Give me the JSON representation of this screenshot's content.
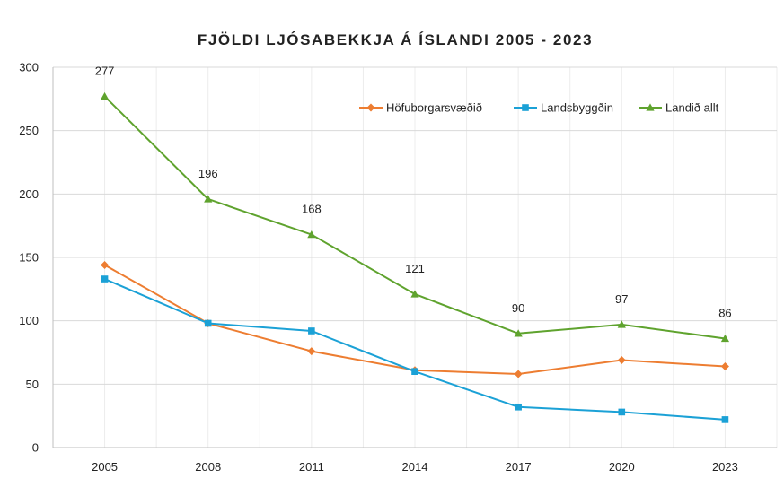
{
  "chart_data": {
    "type": "line",
    "title": "FJÖLDI LJÓSABEKKJA Á ÍSLANDI 2005 - 2023",
    "categories": [
      "2005",
      "2008",
      "2011",
      "2014",
      "2017",
      "2020",
      "2023"
    ],
    "ylim": [
      0,
      300
    ],
    "yticks": [
      0,
      50,
      100,
      150,
      200,
      250,
      300
    ],
    "xlabel": "",
    "ylabel": "",
    "grid": true,
    "legend_position": "top-right",
    "series": [
      {
        "name": "Höfuborgarsvæðið",
        "color": "#ed7d31",
        "marker": "diamond",
        "values": [
          144,
          98,
          76,
          61,
          58,
          69,
          64
        ],
        "labels": null
      },
      {
        "name": "Landsbyggðin",
        "color": "#1ba1d6",
        "marker": "square",
        "values": [
          133,
          98,
          92,
          60,
          32,
          28,
          22
        ],
        "labels": null
      },
      {
        "name": "Landið allt",
        "color": "#5fa32e",
        "marker": "triangle",
        "values": [
          277,
          196,
          168,
          121,
          90,
          97,
          86
        ],
        "labels": [
          "277",
          "196",
          "168",
          "121",
          "90",
          "97",
          "86"
        ]
      }
    ]
  }
}
